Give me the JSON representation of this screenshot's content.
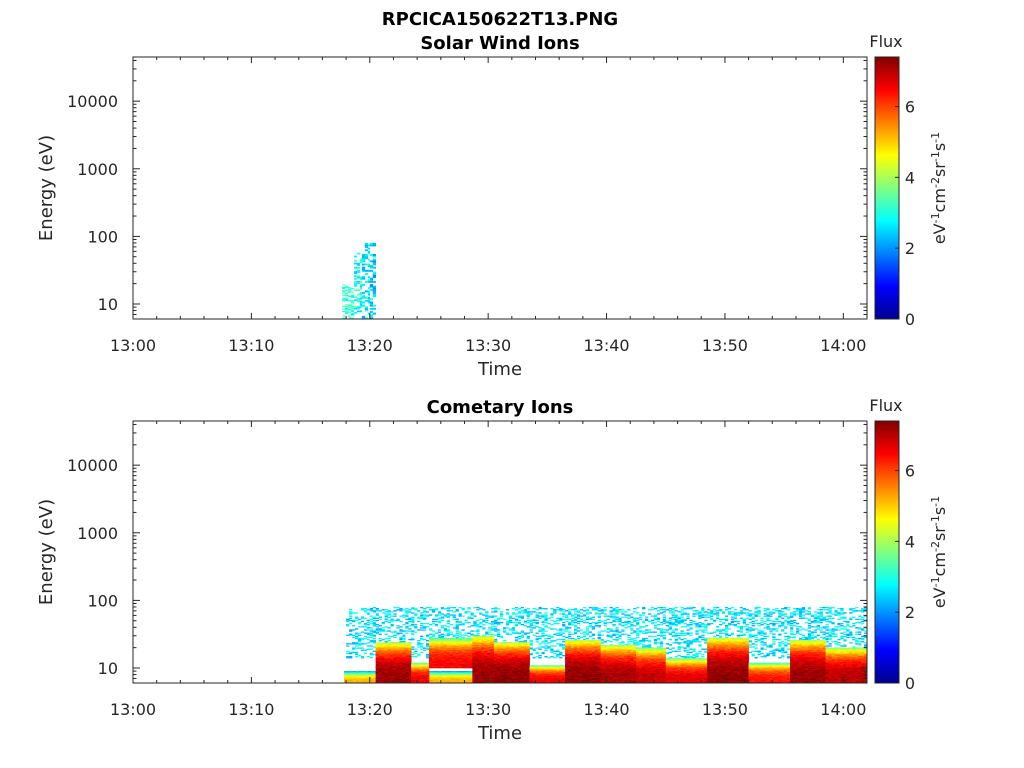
{
  "figure_title": "RPCICA150622T13.PNG",
  "colorbar": {
    "label": "Flux",
    "units_parts": [
      {
        "t": "eV",
        "sup": false
      },
      {
        "t": "-1",
        "sup": true
      },
      {
        "t": "cm",
        "sup": false
      },
      {
        "t": "-2",
        "sup": true
      },
      {
        "t": "sr",
        "sup": false
      },
      {
        "t": "-1",
        "sup": true
      },
      {
        "t": "s",
        "sup": false
      },
      {
        "t": "-1",
        "sup": true
      }
    ],
    "range": [
      0,
      7.4
    ],
    "ticks": [
      "0",
      "2",
      "4",
      "6"
    ],
    "colormap": "jet"
  },
  "chart_data": [
    {
      "type": "heatmap",
      "title": "Solar Wind Ions",
      "xlabel": "Time",
      "ylabel": "Energy (eV)",
      "xlim": [
        "13:00",
        "14:02"
      ],
      "ylim": [
        6,
        45000
      ],
      "yscale": "log",
      "x_ticks": [
        "13:00",
        "13:10",
        "13:20",
        "13:30",
        "13:40",
        "13:50",
        "14:00"
      ],
      "y_ticks": [
        "10",
        "100",
        "1000",
        "10000"
      ],
      "grid": false,
      "blocks": [
        {
          "t0": "13:17:40",
          "t1": "13:18:40",
          "e0": 6,
          "e1": 20,
          "v": 3.1
        },
        {
          "t0": "13:18:40",
          "t1": "13:19:20",
          "e0": 6,
          "e1": 60,
          "v": 2.9
        },
        {
          "t0": "13:19:20",
          "t1": "13:20:00",
          "e0": 6,
          "e1": 80,
          "v": 2.6
        },
        {
          "t0": "13:20:00",
          "t1": "13:20:30",
          "e0": 6,
          "e1": 80,
          "v": 2.4
        }
      ]
    },
    {
      "type": "heatmap",
      "title": "Cometary Ions",
      "xlabel": "Time",
      "ylabel": "Energy (eV)",
      "xlim": [
        "13:00",
        "14:02"
      ],
      "ylim": [
        6,
        45000
      ],
      "yscale": "log",
      "x_ticks": [
        "13:00",
        "13:10",
        "13:20",
        "13:30",
        "13:40",
        "13:50",
        "14:00"
      ],
      "y_ticks": [
        "10",
        "100",
        "1000",
        "10000"
      ],
      "grid": false,
      "noise": {
        "t0": "13:18:00",
        "t1": "14:02:00",
        "e0": 14,
        "e1": 80,
        "v": 2.6
      },
      "baseline": {
        "t0": "13:17:50",
        "t1": "14:02:00",
        "e0": 6,
        "e1": 9,
        "v": 5.2
      },
      "blocks": [
        {
          "t0": "13:20:30",
          "t1": "13:23:30",
          "e0": 6,
          "e1": 24,
          "v": 7.2
        },
        {
          "t0": "13:23:30",
          "t1": "13:25:00",
          "e0": 6,
          "e1": 12,
          "v": 6.6
        },
        {
          "t0": "13:25:00",
          "t1": "13:29:00",
          "e0": 10,
          "e1": 28,
          "v": 6.5
        },
        {
          "t0": "13:28:40",
          "t1": "13:30:30",
          "e0": 6,
          "e1": 30,
          "v": 7.2
        },
        {
          "t0": "13:30:30",
          "t1": "13:33:30",
          "e0": 6,
          "e1": 24,
          "v": 7.3
        },
        {
          "t0": "13:33:30",
          "t1": "13:36:30",
          "e0": 6,
          "e1": 11,
          "v": 6.6
        },
        {
          "t0": "13:36:30",
          "t1": "13:39:30",
          "e0": 6,
          "e1": 26,
          "v": 7.3
        },
        {
          "t0": "13:39:30",
          "t1": "13:42:30",
          "e0": 6,
          "e1": 22,
          "v": 7.1
        },
        {
          "t0": "13:42:30",
          "t1": "13:45:00",
          "e0": 6,
          "e1": 20,
          "v": 6.9
        },
        {
          "t0": "13:45:00",
          "t1": "13:48:30",
          "e0": 6,
          "e1": 14,
          "v": 6.7
        },
        {
          "t0": "13:48:30",
          "t1": "13:52:00",
          "e0": 6,
          "e1": 28,
          "v": 7.3
        },
        {
          "t0": "13:52:00",
          "t1": "13:55:30",
          "e0": 6,
          "e1": 12,
          "v": 6.4
        },
        {
          "t0": "13:55:30",
          "t1": "13:58:30",
          "e0": 6,
          "e1": 26,
          "v": 7.2
        },
        {
          "t0": "13:58:30",
          "t1": "14:02:00",
          "e0": 6,
          "e1": 20,
          "v": 7.0
        }
      ]
    }
  ]
}
